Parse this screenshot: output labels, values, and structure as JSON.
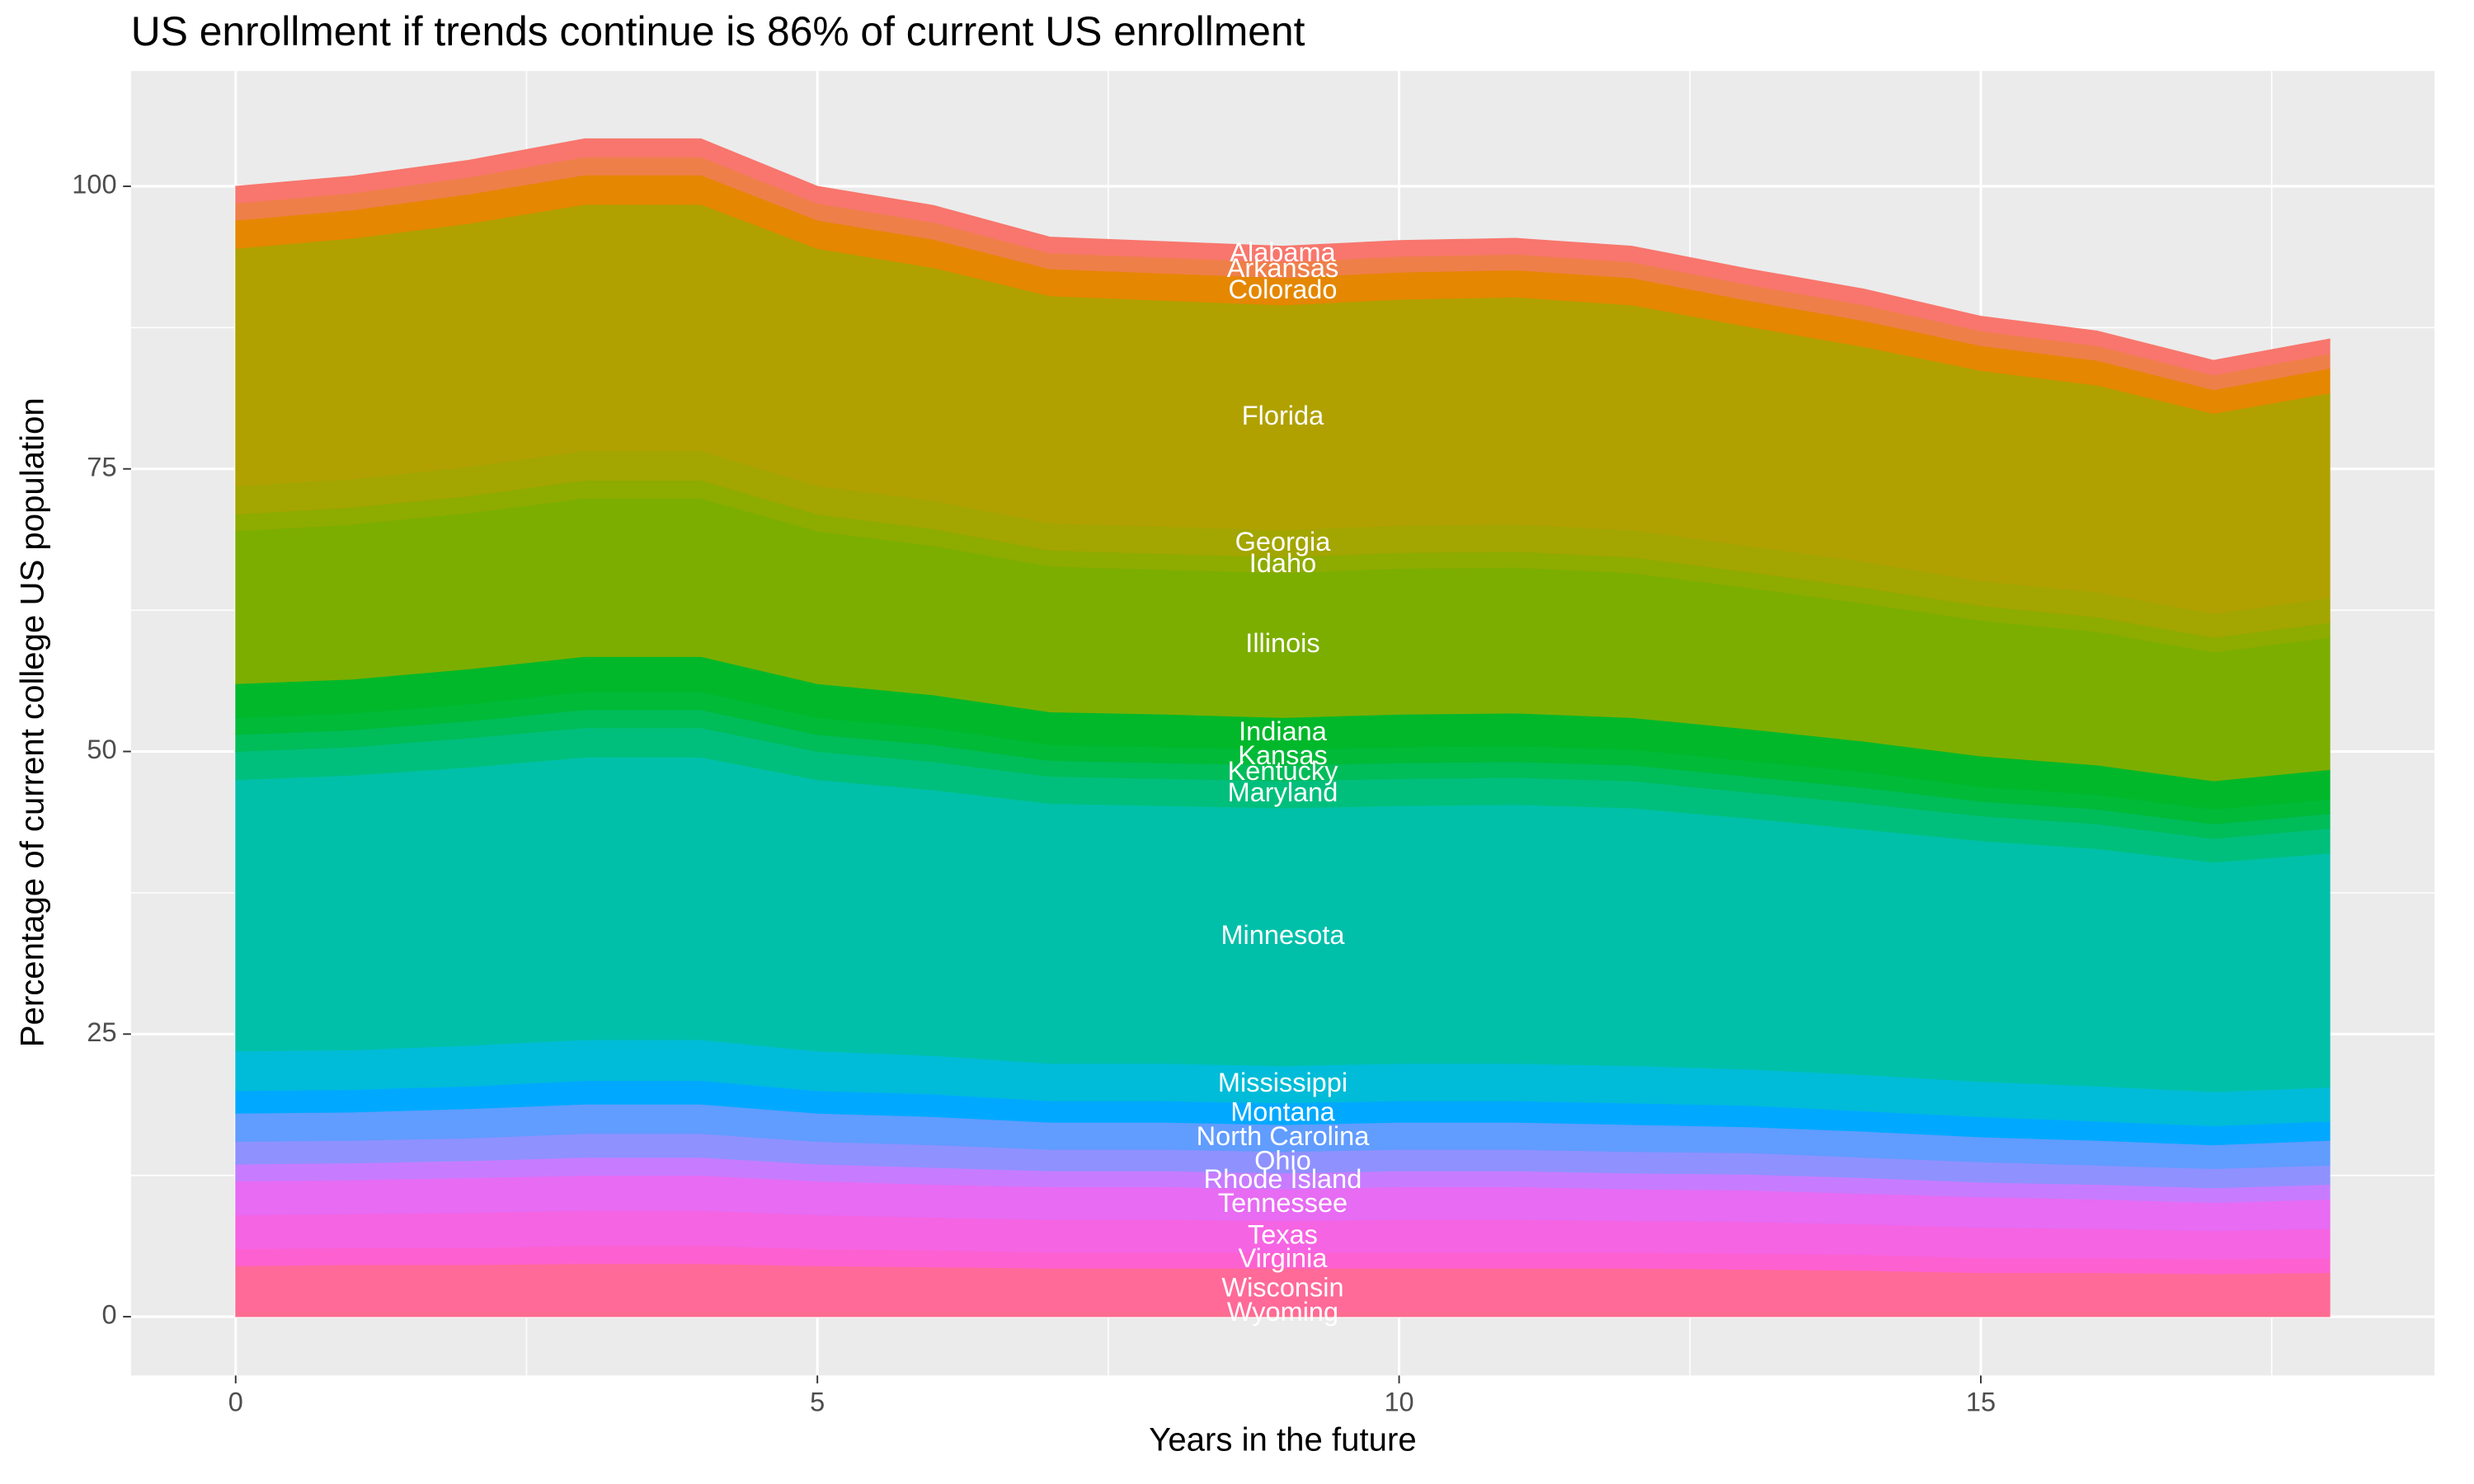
{
  "chart_data": {
    "type": "stacked_area",
    "title": "US enrollment if trends continue is 86% of current US enrollment",
    "x_label": "Years in the future",
    "y_label": "Percentage of current college US population",
    "x": [
      0,
      1,
      2,
      3,
      4,
      5,
      6,
      7,
      8,
      9,
      10,
      11,
      12,
      13,
      14,
      15,
      16,
      17,
      18
    ],
    "xlim": [
      -0.9,
      18.9
    ],
    "xticks": [
      0,
      5,
      10,
      15
    ],
    "ylim": [
      -5.2,
      110.2
    ],
    "yticks": [
      0,
      25,
      50,
      75,
      100
    ],
    "grid": true,
    "series": [
      {
        "name": "Wyoming",
        "color": "#FF6C91",
        "values": [
          0.5,
          0.5,
          0.5,
          0.5,
          0.5,
          0.5,
          0.5,
          0.5,
          0.5,
          0.5,
          0.5,
          0.5,
          0.5,
          0.5,
          0.5,
          0.4,
          0.4,
          0.4,
          0.4
        ]
      },
      {
        "name": "Wisconsin",
        "color": "#FF6A98",
        "values": [
          4,
          4.1,
          4.1,
          4.2,
          4.2,
          4,
          3.9,
          3.8,
          3.8,
          3.8,
          3.8,
          3.8,
          3.8,
          3.7,
          3.6,
          3.5,
          3.5,
          3.4,
          3.5
        ]
      },
      {
        "name": "Virginia",
        "color": "#FD61D1",
        "values": [
          1.5,
          1.5,
          1.5,
          1.6,
          1.6,
          1.5,
          1.5,
          1.4,
          1.4,
          1.4,
          1.4,
          1.4,
          1.4,
          1.4,
          1.4,
          1.3,
          1.3,
          1.3,
          1.3
        ]
      },
      {
        "name": "Texas",
        "color": "#F564E3",
        "values": [
          3,
          3,
          3.1,
          3.1,
          3.1,
          3,
          2.9,
          2.9,
          2.9,
          2.8,
          2.9,
          2.9,
          2.8,
          2.8,
          2.7,
          2.7,
          2.6,
          2.5,
          2.6
        ]
      },
      {
        "name": "Tennessee",
        "color": "#E76BF3",
        "values": [
          3,
          3,
          3.1,
          3.1,
          3.1,
          3,
          2.9,
          2.9,
          2.9,
          2.8,
          2.9,
          2.9,
          2.8,
          2.8,
          2.7,
          2.7,
          2.6,
          2.5,
          2.6
        ]
      },
      {
        "name": "Rhode Island",
        "color": "#C77CFF",
        "values": [
          1.5,
          1.5,
          1.5,
          1.6,
          1.6,
          1.5,
          1.5,
          1.4,
          1.4,
          1.4,
          1.4,
          1.4,
          1.4,
          1.4,
          1.4,
          1.3,
          1.3,
          1.3,
          1.3
        ]
      },
      {
        "name": "Ohio",
        "color": "#8F91FF",
        "values": [
          2,
          2,
          2,
          2.1,
          2.1,
          2,
          2,
          1.9,
          1.9,
          1.9,
          1.9,
          1.9,
          1.9,
          1.9,
          1.8,
          1.8,
          1.7,
          1.7,
          1.7
        ]
      },
      {
        "name": "North Carolina",
        "color": "#619CFF",
        "values": [
          2.5,
          2.5,
          2.6,
          2.6,
          2.6,
          2.5,
          2.5,
          2.4,
          2.4,
          2.4,
          2.4,
          2.4,
          2.4,
          2.3,
          2.3,
          2.2,
          2.2,
          2.1,
          2.2
        ]
      },
      {
        "name": "Montana",
        "color": "#00A9FF",
        "values": [
          2,
          2,
          2,
          2.1,
          2.1,
          2,
          2,
          1.9,
          1.9,
          1.9,
          1.9,
          1.9,
          1.9,
          1.9,
          1.8,
          1.8,
          1.7,
          1.7,
          1.7
        ]
      },
      {
        "name": "Mississippi",
        "color": "#00BCD8",
        "values": [
          3.5,
          3.5,
          3.6,
          3.6,
          3.6,
          3.5,
          3.4,
          3.3,
          3.3,
          3.3,
          3.3,
          3.3,
          3.3,
          3.2,
          3.2,
          3.1,
          3.1,
          3,
          3
        ]
      },
      {
        "name": "Minnesota",
        "color": "#00C0AA",
        "values": [
          24,
          24.3,
          24.6,
          25,
          25,
          24,
          23.5,
          23,
          22.8,
          22.8,
          22.8,
          22.9,
          22.8,
          22.2,
          21.7,
          21.3,
          21,
          20.3,
          20.7
        ]
      },
      {
        "name": "Maryland",
        "color": "#00BF7D",
        "values": [
          2.5,
          2.5,
          2.6,
          2.6,
          2.6,
          2.5,
          2.5,
          2.4,
          2.4,
          2.4,
          2.4,
          2.4,
          2.4,
          2.3,
          2.3,
          2.2,
          2.2,
          2.1,
          2.2
        ]
      },
      {
        "name": "Kentucky",
        "color": "#00BC59",
        "values": [
          1.5,
          1.5,
          1.5,
          1.6,
          1.6,
          1.5,
          1.5,
          1.4,
          1.4,
          1.4,
          1.4,
          1.4,
          1.4,
          1.4,
          1.4,
          1.3,
          1.3,
          1.3,
          1.3
        ]
      },
      {
        "name": "Kansas",
        "color": "#00BA38",
        "values": [
          1.5,
          1.5,
          1.5,
          1.6,
          1.6,
          1.5,
          1.5,
          1.4,
          1.4,
          1.4,
          1.4,
          1.4,
          1.4,
          1.4,
          1.4,
          1.3,
          1.3,
          1.3,
          1.3
        ]
      },
      {
        "name": "Indiana",
        "color": "#00B82A",
        "values": [
          3,
          3,
          3.1,
          3.1,
          3.1,
          3,
          2.9,
          2.9,
          2.9,
          2.8,
          2.9,
          2.9,
          2.8,
          2.8,
          2.7,
          2.7,
          2.6,
          2.5,
          2.6
        ]
      },
      {
        "name": "Illinois",
        "color": "#7CAE00",
        "values": [
          13.5,
          13.7,
          13.8,
          14,
          14,
          13.5,
          13.2,
          12.9,
          12.8,
          12.8,
          12.9,
          12.9,
          12.8,
          12.5,
          12.2,
          12,
          11.8,
          11.4,
          11.7
        ]
      },
      {
        "name": "Idaho",
        "color": "#8EAB00",
        "values": [
          1.5,
          1.5,
          1.5,
          1.6,
          1.6,
          1.5,
          1.5,
          1.4,
          1.4,
          1.4,
          1.4,
          1.4,
          1.4,
          1.4,
          1.4,
          1.3,
          1.3,
          1.3,
          1.3
        ]
      },
      {
        "name": "Georgia",
        "color": "#A3A500",
        "values": [
          2.5,
          2.5,
          2.6,
          2.6,
          2.6,
          2.5,
          2.5,
          2.4,
          2.4,
          2.4,
          2.4,
          2.4,
          2.4,
          2.3,
          2.3,
          2.2,
          2.2,
          2.1,
          2.2
        ]
      },
      {
        "name": "Florida",
        "color": "#B0A100",
        "values": [
          21,
          21.3,
          21.5,
          21.8,
          21.8,
          21,
          20.6,
          20.1,
          20,
          19.9,
          20,
          20.1,
          19.9,
          19.4,
          19,
          18.6,
          18.3,
          17.7,
          18.1
        ]
      },
      {
        "name": "Colorado",
        "color": "#E58700",
        "values": [
          2.5,
          2.5,
          2.6,
          2.6,
          2.6,
          2.5,
          2.5,
          2.4,
          2.4,
          2.4,
          2.4,
          2.4,
          2.4,
          2.3,
          2.3,
          2.2,
          2.2,
          2.1,
          2.2
        ]
      },
      {
        "name": "Arkansas",
        "color": "#EF7F49",
        "values": [
          1.5,
          1.5,
          1.5,
          1.6,
          1.6,
          1.5,
          1.5,
          1.4,
          1.4,
          1.4,
          1.4,
          1.4,
          1.4,
          1.4,
          1.4,
          1.3,
          1.3,
          1.3,
          1.3
        ]
      },
      {
        "name": "Alabama",
        "color": "#F8766D",
        "values": [
          1.5,
          1.5,
          1.5,
          1.6,
          1.6,
          1.5,
          1.5,
          1.4,
          1.4,
          1.4,
          1.4,
          1.4,
          1.4,
          1.4,
          1.4,
          1.3,
          1.3,
          1.3,
          1.3
        ]
      }
    ]
  }
}
